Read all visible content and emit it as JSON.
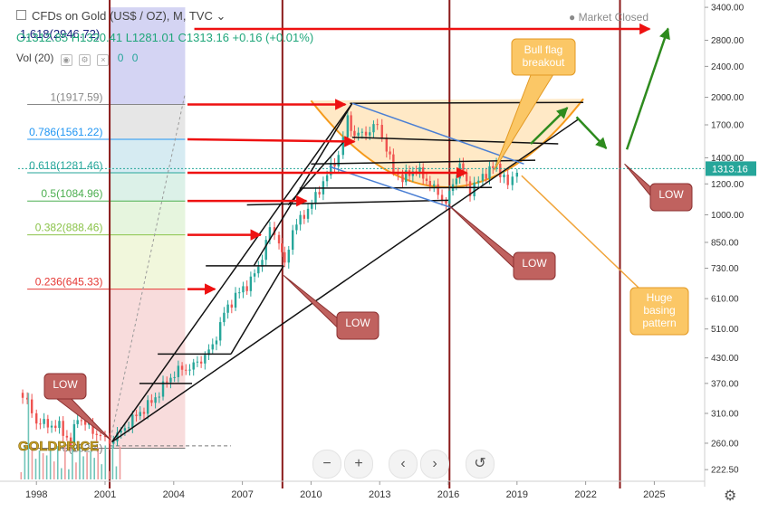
{
  "header": {
    "symbol_line": "CFDs on Gold (US$ / OZ), M, TVC",
    "ohlc_line": "O1312.85  H1320.41  L1281.01  C1313.16  +0.16 (+0.01%)",
    "top_fib": "1.618(2946.72)",
    "market_status": "Market Closed"
  },
  "volume": {
    "label": "Vol (20)",
    "value_a": "0",
    "value_b": "0"
  },
  "price_tag": "1313.16",
  "chart_data": {
    "type": "candlestick",
    "scale": "log",
    "ylim": [
      210,
      3550
    ],
    "xlim": [
      1997.2,
      2027.2
    ],
    "y_ticks": [
      222.5,
      260,
      310,
      370,
      430,
      510,
      610,
      730,
      850,
      1000,
      1200,
      1400,
      1700,
      2000,
      2400,
      2800,
      3400
    ],
    "y_tick_labels": [
      "222.50",
      "260.00",
      "310.00",
      "370.00",
      "430.00",
      "510.00",
      "610.00",
      "730.00",
      "850.00",
      "1000.00",
      "1200.00",
      "1400.00",
      "1700.00",
      "2000.00",
      "2400.00",
      "2800.00",
      "3400.00"
    ],
    "x_ticks": [
      1998,
      2001,
      2004,
      2007,
      2010,
      2013,
      2016,
      2019,
      2022,
      2025
    ],
    "last_price": 1313.16,
    "price_series": [
      {
        "x": 1997.2,
        "y": 350
      },
      {
        "x": 1997.6,
        "y": 330
      },
      {
        "x": 1998.0,
        "y": 295
      },
      {
        "x": 1998.5,
        "y": 290
      },
      {
        "x": 1999.0,
        "y": 287
      },
      {
        "x": 1999.5,
        "y": 260
      },
      {
        "x": 1999.8,
        "y": 305
      },
      {
        "x": 2000.3,
        "y": 285
      },
      {
        "x": 2000.8,
        "y": 270
      },
      {
        "x": 2001.2,
        "y": 262
      },
      {
        "x": 2001.7,
        "y": 278
      },
      {
        "x": 2002.2,
        "y": 300
      },
      {
        "x": 2002.7,
        "y": 318
      },
      {
        "x": 2003.2,
        "y": 340
      },
      {
        "x": 2003.7,
        "y": 375
      },
      {
        "x": 2004.2,
        "y": 400
      },
      {
        "x": 2004.7,
        "y": 405
      },
      {
        "x": 2005.2,
        "y": 425
      },
      {
        "x": 2005.7,
        "y": 460
      },
      {
        "x": 2006.2,
        "y": 560
      },
      {
        "x": 2006.7,
        "y": 620
      },
      {
        "x": 2007.2,
        "y": 660
      },
      {
        "x": 2007.7,
        "y": 730
      },
      {
        "x": 2008.2,
        "y": 920
      },
      {
        "x": 2008.6,
        "y": 860
      },
      {
        "x": 2008.85,
        "y": 740
      },
      {
        "x": 2009.2,
        "y": 920
      },
      {
        "x": 2009.7,
        "y": 1000
      },
      {
        "x": 2010.2,
        "y": 1110
      },
      {
        "x": 2010.7,
        "y": 1270
      },
      {
        "x": 2011.2,
        "y": 1420
      },
      {
        "x": 2011.6,
        "y": 1760
      },
      {
        "x": 2011.9,
        "y": 1600
      },
      {
        "x": 2012.4,
        "y": 1620
      },
      {
        "x": 2012.9,
        "y": 1700
      },
      {
        "x": 2013.3,
        "y": 1480
      },
      {
        "x": 2013.6,
        "y": 1300
      },
      {
        "x": 2014.0,
        "y": 1240
      },
      {
        "x": 2014.6,
        "y": 1310
      },
      {
        "x": 2015.2,
        "y": 1200
      },
      {
        "x": 2015.9,
        "y": 1070
      },
      {
        "x": 2016.5,
        "y": 1340
      },
      {
        "x": 2016.95,
        "y": 1150
      },
      {
        "x": 2017.5,
        "y": 1260
      },
      {
        "x": 2018.1,
        "y": 1340
      },
      {
        "x": 2018.6,
        "y": 1190
      },
      {
        "x": 2019.0,
        "y": 1313
      }
    ],
    "fib_levels": [
      {
        "label": "1(1917.59)",
        "value": 1917.59,
        "color": "#888888"
      },
      {
        "label": "0.786(1561.22)",
        "value": 1561.22,
        "color": "#2196f3"
      },
      {
        "label": "0.618(1281.46)",
        "value": 1281.46,
        "color": "#26a69a"
      },
      {
        "label": "0.5(1084.96)",
        "value": 1084.96,
        "color": "#4caf50"
      },
      {
        "label": "0.382(888.46)",
        "value": 888.46,
        "color": "#8bc34a"
      },
      {
        "label": "0.236(645.33)",
        "value": 645.33,
        "color": "#e53935"
      },
      {
        "label": "0(252.4)",
        "value": 252.4,
        "color": "#777777"
      }
    ],
    "annotations": [
      {
        "name": "callout-low-2001",
        "text": "LOW"
      },
      {
        "name": "callout-low-2008",
        "text": "LOW"
      },
      {
        "name": "callout-low-2015",
        "text": "LOW"
      },
      {
        "name": "callout-low-2023",
        "text": "LOW"
      },
      {
        "name": "callout-bull-flag",
        "text": "Bull flag breakout"
      },
      {
        "name": "callout-basing",
        "text": "Huge basing pattern"
      }
    ],
    "watermark": "GOLDPRICE"
  },
  "toolbar": {
    "zoom_out": "−",
    "zoom_in": "+",
    "scroll_left": "‹",
    "scroll_right": "›",
    "reset": "↺",
    "settings": "⚙"
  },
  "colors": {
    "up": "#26a69a",
    "down": "#ef5350",
    "bull_arrow": "#2e8b1e",
    "red_arrow": "#ee1111",
    "callout_red": "#c0625f",
    "callout_orange": "#fbc766"
  }
}
